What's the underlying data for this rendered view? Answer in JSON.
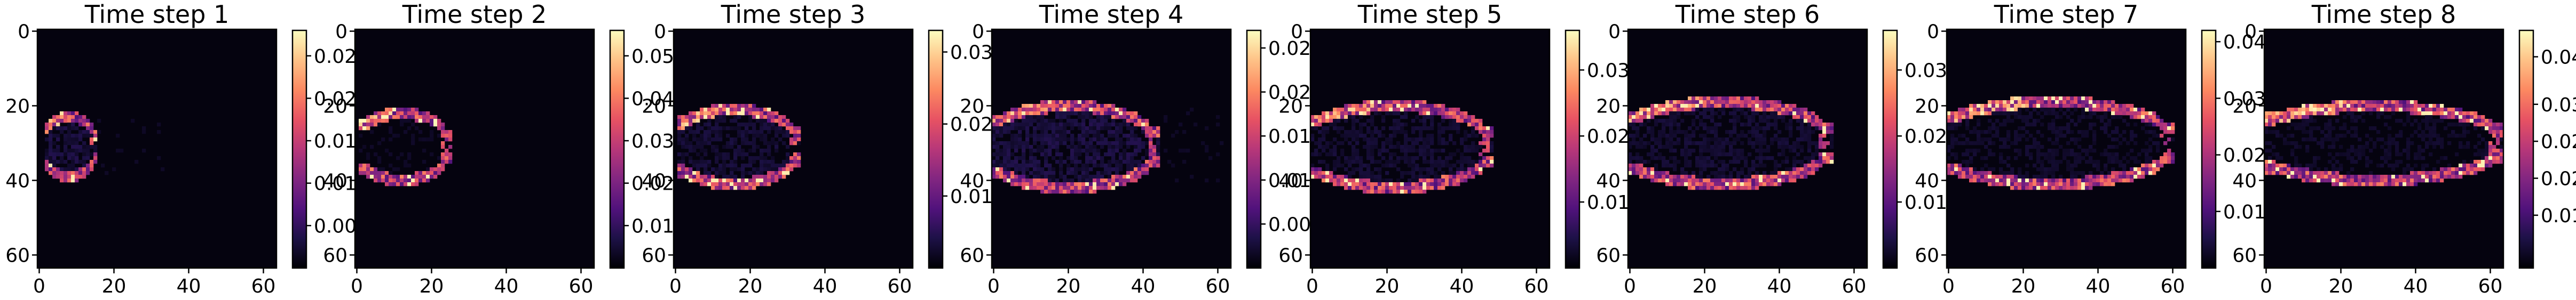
{
  "chart_data": [
    {
      "type": "heatmap",
      "title": "Time step 1",
      "xlim": [
        0,
        63
      ],
      "ylim": [
        63,
        0
      ],
      "xticks": [
        "0",
        "20",
        "40",
        "60"
      ],
      "yticks": [
        "0",
        "20",
        "40",
        "60"
      ],
      "colorbar": {
        "min": 0.0,
        "max": 0.028,
        "ticks": [
          "0.005",
          "0.010",
          "0.015",
          "0.020",
          "0.025"
        ],
        "tick_values": [
          0.005,
          0.01,
          0.015,
          0.02,
          0.025
        ]
      },
      "front": {
        "x0": 2,
        "x1": 15,
        "cy": 31,
        "half_height": 8,
        "peak": 0.027,
        "wake": 0.003
      }
    },
    {
      "type": "heatmap",
      "title": "Time step 2",
      "xlim": [
        0,
        63
      ],
      "ylim": [
        63,
        0
      ],
      "xticks": [
        "0",
        "20",
        "40",
        "60"
      ],
      "yticks": [
        "0",
        "20",
        "40",
        "60"
      ],
      "colorbar": {
        "min": 0.0,
        "max": 0.056,
        "ticks": [
          "0.01",
          "0.02",
          "0.03",
          "0.04",
          "0.05"
        ],
        "tick_values": [
          0.01,
          0.02,
          0.03,
          0.04,
          0.05
        ]
      },
      "front": {
        "x0": 2,
        "x1": 24,
        "cy": 31,
        "half_height": 9,
        "peak": 0.055,
        "wake": 0.003
      }
    },
    {
      "type": "heatmap",
      "title": "Time step 3",
      "xlim": [
        0,
        63
      ],
      "ylim": [
        63,
        0
      ],
      "xticks": [
        "0",
        "20",
        "40",
        "60"
      ],
      "yticks": [
        "0",
        "20",
        "40",
        "60"
      ],
      "colorbar": {
        "min": 0.0,
        "max": 0.033,
        "ticks": [
          "0.01",
          "0.02",
          "0.03"
        ],
        "tick_values": [
          0.01,
          0.02,
          0.03
        ]
      },
      "front": {
        "x0": 2,
        "x1": 32,
        "cy": 31,
        "half_height": 10,
        "peak": 0.032,
        "wake": 0.003
      }
    },
    {
      "type": "heatmap",
      "title": "Time step 4",
      "xlim": [
        0,
        63
      ],
      "ylim": [
        63,
        0
      ],
      "xticks": [
        "0",
        "20",
        "40",
        "60"
      ],
      "yticks": [
        "0",
        "20",
        "40",
        "60"
      ],
      "colorbar": {
        "min": 0.0,
        "max": 0.027,
        "ticks": [
          "0.005",
          "0.010",
          "0.015",
          "0.020",
          "0.025"
        ],
        "tick_values": [
          0.005,
          0.01,
          0.015,
          0.02,
          0.025
        ]
      },
      "front": {
        "x0": 2,
        "x1": 42,
        "cy": 31,
        "half_height": 11,
        "peak": 0.026,
        "wake": 0.003
      }
    },
    {
      "type": "heatmap",
      "title": "Time step 5",
      "xlim": [
        0,
        63
      ],
      "ylim": [
        63,
        0
      ],
      "xticks": [
        "0",
        "20",
        "40",
        "60"
      ],
      "yticks": [
        "0",
        "20",
        "40",
        "60"
      ],
      "colorbar": {
        "min": 0.0,
        "max": 0.036,
        "ticks": [
          "0.01",
          "0.02",
          "0.03"
        ],
        "tick_values": [
          0.01,
          0.02,
          0.03
        ]
      },
      "front": {
        "x0": 2,
        "x1": 46,
        "cy": 31,
        "half_height": 11,
        "peak": 0.035,
        "wake": 0.003
      }
    },
    {
      "type": "heatmap",
      "title": "Time step 6",
      "xlim": [
        0,
        63
      ],
      "ylim": [
        63,
        0
      ],
      "xticks": [
        "0",
        "20",
        "40",
        "60"
      ],
      "yticks": [
        "0",
        "20",
        "40",
        "60"
      ],
      "colorbar": {
        "min": 0.0,
        "max": 0.036,
        "ticks": [
          "0.01",
          "0.02",
          "0.03"
        ],
        "tick_values": [
          0.01,
          0.02,
          0.03
        ]
      },
      "front": {
        "x0": 2,
        "x1": 52,
        "cy": 30,
        "half_height": 11,
        "peak": 0.035,
        "wake": 0.003
      }
    },
    {
      "type": "heatmap",
      "title": "Time step 7",
      "xlim": [
        0,
        63
      ],
      "ylim": [
        63,
        0
      ],
      "xticks": [
        "0",
        "20",
        "40",
        "60"
      ],
      "yticks": [
        "0",
        "20",
        "40",
        "60"
      ],
      "colorbar": {
        "min": 0.0,
        "max": 0.042,
        "ticks": [
          "0.01",
          "0.02",
          "0.03",
          "0.04"
        ],
        "tick_values": [
          0.01,
          0.02,
          0.03,
          0.04
        ]
      },
      "front": {
        "x0": 2,
        "x1": 58,
        "cy": 30,
        "half_height": 11,
        "peak": 0.041,
        "wake": 0.003
      }
    },
    {
      "type": "heatmap",
      "title": "Time step 8",
      "xlim": [
        0,
        63
      ],
      "ylim": [
        63,
        0
      ],
      "xticks": [
        "0",
        "20",
        "40",
        "60"
      ],
      "yticks": [
        "0",
        "20",
        "40",
        "60"
      ],
      "colorbar": {
        "min": 0.0,
        "max": 0.045,
        "ticks": [
          "0.01",
          "0.02",
          "0.02",
          "0.03",
          "0.04"
        ],
        "tick_values": [
          0.01,
          0.017,
          0.024,
          0.031,
          0.04
        ]
      },
      "front": {
        "x0": 2,
        "x1": 61,
        "cy": 30,
        "half_height": 10,
        "peak": 0.044,
        "wake": 0.003
      }
    }
  ],
  "colormap": [
    "#000004",
    "#1d1147",
    "#51127c",
    "#822681",
    "#b73779",
    "#e75263",
    "#fc8961",
    "#fec287",
    "#fcfdbf"
  ]
}
